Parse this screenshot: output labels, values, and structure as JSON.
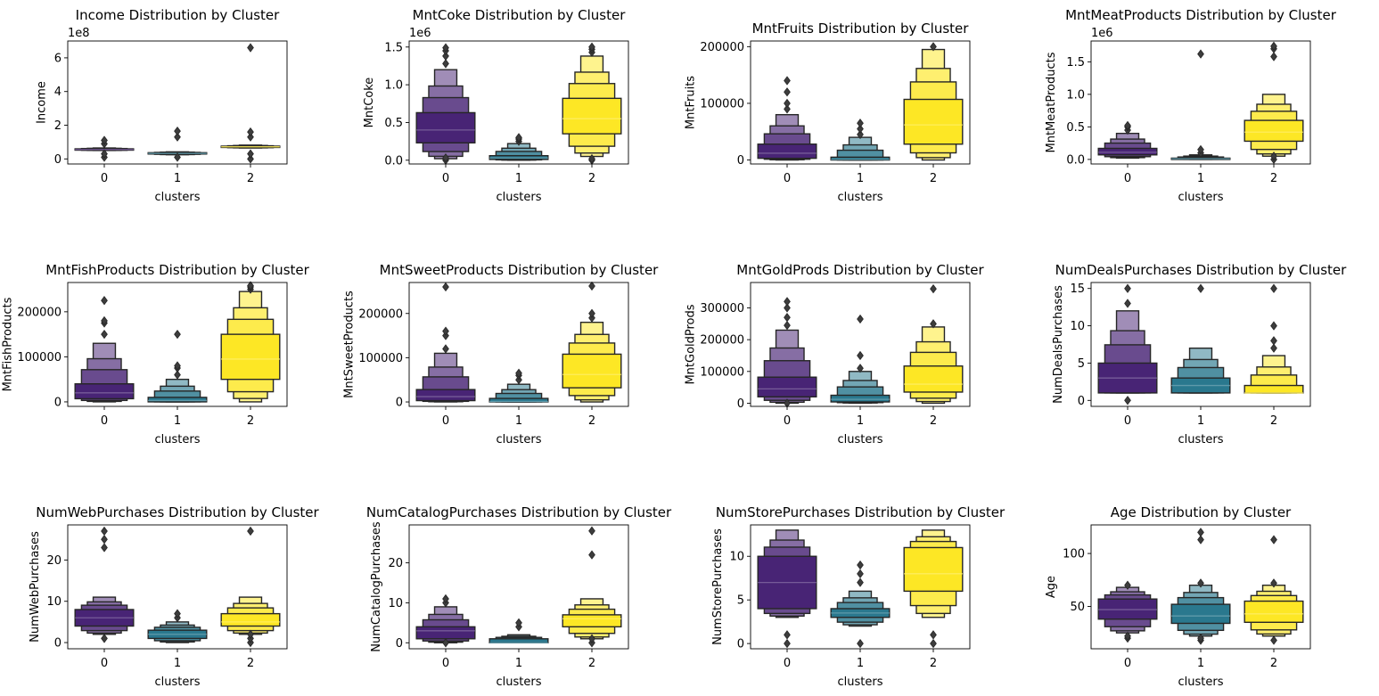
{
  "colors": {
    "cluster_0": "#482475",
    "cluster_1": "#2a788e",
    "cluster_2": "#fde725",
    "edge": "#262626"
  },
  "chart_data": [
    {
      "type": "boxen",
      "title": "Income Distribution by Cluster",
      "xlabel": "clusters",
      "ylabel": "Income",
      "categories": [
        "0",
        "1",
        "2"
      ],
      "ylim": [
        -30000000,
        700000000
      ],
      "yticks": [
        0,
        200000000,
        400000000,
        600000000
      ],
      "ytick_labels": [
        "0",
        "2",
        "4",
        "6"
      ],
      "offset_label": "1e8",
      "boxes": [
        {
          "lo": 50000000,
          "q1": 53000000,
          "med": 56000000,
          "q3": 60000000,
          "hi": 65000000,
          "outliers": [
            10000000,
            30000000,
            90000000,
            110000000
          ]
        },
        {
          "lo": 25000000,
          "q1": 30000000,
          "med": 33000000,
          "q3": 37000000,
          "hi": 42000000,
          "outliers": [
            10000000,
            130000000,
            165000000
          ]
        },
        {
          "lo": 65000000,
          "q1": 69000000,
          "med": 72000000,
          "q3": 76000000,
          "hi": 82000000,
          "outliers": [
            0,
            30000000,
            130000000,
            160000000,
            660000000
          ]
        }
      ]
    },
    {
      "type": "boxen",
      "title": "MntCoke Distribution by Cluster",
      "xlabel": "clusters",
      "ylabel": "MntCoke",
      "categories": [
        "0",
        "1",
        "2"
      ],
      "ylim": [
        -50000,
        1580000
      ],
      "yticks": [
        0,
        500000,
        1000000,
        1500000
      ],
      "ytick_labels": [
        "0.0",
        "0.5",
        "1.0",
        "1.5"
      ],
      "offset_label": "1e6",
      "boxes": [
        {
          "lo": 20000,
          "q1": 230000,
          "med": 400000,
          "q3": 630000,
          "hi": 1200000,
          "outliers": [
            0,
            30000,
            1280000,
            1380000,
            1450000,
            1490000
          ]
        },
        {
          "lo": 0,
          "q1": 10000,
          "med": 30000,
          "q3": 60000,
          "hi": 220000,
          "outliers": [
            250000,
            280000,
            300000
          ]
        },
        {
          "lo": 50000,
          "q1": 350000,
          "med": 550000,
          "q3": 820000,
          "hi": 1380000,
          "outliers": [
            0,
            20000,
            1430000,
            1470000,
            1500000
          ]
        }
      ]
    },
    {
      "type": "boxen",
      "title": "MntFruits Distribution by Cluster",
      "xlabel": "clusters",
      "ylabel": "MntFruits",
      "categories": [
        "0",
        "1",
        "2"
      ],
      "ylim": [
        -7000,
        210000
      ],
      "yticks": [
        0,
        100000,
        200000
      ],
      "ytick_labels": [
        "0",
        "100000",
        "200000"
      ],
      "offset_label": "",
      "boxes": [
        {
          "lo": 0,
          "q1": 3000,
          "med": 12000,
          "q3": 28000,
          "hi": 80000,
          "outliers": [
            90000,
            100000,
            120000,
            140000
          ]
        },
        {
          "lo": 0,
          "q1": 0,
          "med": 1000,
          "q3": 5000,
          "hi": 40000,
          "outliers": [
            45000,
            55000,
            65000
          ]
        },
        {
          "lo": 0,
          "q1": 28000,
          "med": 62000,
          "q3": 107000,
          "hi": 195000,
          "outliers": [
            200000
          ]
        }
      ]
    },
    {
      "type": "boxen",
      "title": "MntMeatProducts Distribution by Cluster",
      "xlabel": "clusters",
      "ylabel": "MntMeatProducts",
      "categories": [
        "0",
        "1",
        "2"
      ],
      "ylim": [
        -70000,
        1820000
      ],
      "yticks": [
        0,
        500000,
        1000000,
        1500000
      ],
      "ytick_labels": [
        "0.0",
        "0.5",
        "1.0",
        "1.5"
      ],
      "offset_label": "1e6",
      "boxes": [
        {
          "lo": 20000,
          "q1": 70000,
          "med": 110000,
          "q3": 170000,
          "hi": 400000,
          "outliers": [
            450000,
            500000,
            520000
          ]
        },
        {
          "lo": 0,
          "q1": 5000,
          "med": 10000,
          "q3": 20000,
          "hi": 70000,
          "outliers": [
            100000,
            150000,
            1620000
          ]
        },
        {
          "lo": 50000,
          "q1": 280000,
          "med": 420000,
          "q3": 600000,
          "hi": 1000000,
          "outliers": [
            0,
            50000,
            1580000,
            1700000,
            1740000
          ]
        }
      ]
    },
    {
      "type": "boxen",
      "title": "MntFishProducts Distribution by Cluster",
      "xlabel": "clusters",
      "ylabel": "MntFishProducts",
      "categories": [
        "0",
        "1",
        "2"
      ],
      "ylim": [
        -10000,
        265000
      ],
      "yticks": [
        0,
        100000,
        200000
      ],
      "ytick_labels": [
        "0",
        "100000",
        "200000"
      ],
      "offset_label": "",
      "boxes": [
        {
          "lo": 0,
          "q1": 7000,
          "med": 20000,
          "q3": 40000,
          "hi": 130000,
          "outliers": [
            150000,
            175000,
            180000,
            225000
          ]
        },
        {
          "lo": 0,
          "q1": 0,
          "med": 3000,
          "q3": 10000,
          "hi": 50000,
          "outliers": [
            60000,
            75000,
            80000,
            150000
          ]
        },
        {
          "lo": 0,
          "q1": 50000,
          "med": 95000,
          "q3": 150000,
          "hi": 245000,
          "outliers": [
            250000,
            255000,
            258000
          ]
        }
      ]
    },
    {
      "type": "boxen",
      "title": "MntSweetProducts Distribution by Cluster",
      "xlabel": "clusters",
      "ylabel": "MntSweetProducts",
      "categories": [
        "0",
        "1",
        "2"
      ],
      "ylim": [
        -10000,
        270000
      ],
      "yticks": [
        0,
        100000,
        200000
      ],
      "ytick_labels": [
        "0",
        "100000",
        "200000"
      ],
      "offset_label": "",
      "boxes": [
        {
          "lo": 0,
          "q1": 3000,
          "med": 12000,
          "q3": 28000,
          "hi": 110000,
          "outliers": [
            120000,
            150000,
            160000,
            260000
          ]
        },
        {
          "lo": 0,
          "q1": 0,
          "med": 1000,
          "q3": 8000,
          "hi": 40000,
          "outliers": [
            50000,
            60000,
            65000
          ]
        },
        {
          "lo": 0,
          "q1": 32000,
          "med": 62000,
          "q3": 108000,
          "hi": 180000,
          "outliers": [
            190000,
            200000,
            262000
          ]
        }
      ]
    },
    {
      "type": "boxen",
      "title": "MntGoldProds Distribution by Cluster",
      "xlabel": "clusters",
      "ylabel": "MntGoldProds",
      "categories": [
        "0",
        "1",
        "2"
      ],
      "ylim": [
        -10000,
        380000
      ],
      "yticks": [
        0,
        100000,
        200000,
        300000
      ],
      "ytick_labels": [
        "0",
        "100000",
        "200000",
        "300000"
      ],
      "offset_label": "",
      "boxes": [
        {
          "lo": 0,
          "q1": 20000,
          "med": 45000,
          "q3": 82000,
          "hi": 230000,
          "outliers": [
            0,
            245000,
            270000,
            300000,
            320000
          ]
        },
        {
          "lo": 0,
          "q1": 4000,
          "med": 12000,
          "q3": 25000,
          "hi": 100000,
          "outliers": [
            110000,
            150000,
            265000
          ]
        },
        {
          "lo": 0,
          "q1": 35000,
          "med": 60000,
          "q3": 117000,
          "hi": 240000,
          "outliers": [
            250000,
            360000
          ]
        }
      ]
    },
    {
      "type": "boxen",
      "title": "NumDealsPurchases Distribution by Cluster",
      "xlabel": "clusters",
      "ylabel": "NumDealsPurchases",
      "categories": [
        "0",
        "1",
        "2"
      ],
      "ylim": [
        -0.8,
        15.8
      ],
      "yticks": [
        0,
        5,
        10,
        15
      ],
      "ytick_labels": [
        "0",
        "5",
        "10",
        "15"
      ],
      "offset_label": "",
      "boxes": [
        {
          "lo": 1,
          "q1": 1,
          "med": 3,
          "q3": 5,
          "hi": 12,
          "outliers": [
            0,
            13,
            15
          ]
        },
        {
          "lo": 1,
          "q1": 1,
          "med": 2,
          "q3": 3,
          "hi": 7,
          "outliers": [
            15
          ]
        },
        {
          "lo": 1,
          "q1": 1,
          "med": 1,
          "q3": 2,
          "hi": 6,
          "outliers": [
            7,
            8,
            10,
            15
          ]
        }
      ]
    },
    {
      "type": "boxen",
      "title": "NumWebPurchases Distribution by Cluster",
      "xlabel": "clusters",
      "ylabel": "NumWebPurchases",
      "categories": [
        "0",
        "1",
        "2"
      ],
      "ylim": [
        -1.5,
        28.5
      ],
      "yticks": [
        0,
        10,
        20
      ],
      "ytick_labels": [
        "0",
        "10",
        "20"
      ],
      "offset_label": "",
      "boxes": [
        {
          "lo": 2,
          "q1": 4,
          "med": 6,
          "q3": 8,
          "hi": 11,
          "outliers": [
            1,
            23,
            25,
            27
          ]
        },
        {
          "lo": 0,
          "q1": 1,
          "med": 2,
          "q3": 3,
          "hi": 5,
          "outliers": [
            6,
            7
          ]
        },
        {
          "lo": 2,
          "q1": 4,
          "med": 5,
          "q3": 7,
          "hi": 11,
          "outliers": [
            0,
            1,
            2,
            27
          ]
        }
      ]
    },
    {
      "type": "boxen",
      "title": "NumCatalogPurchases Distribution by Cluster",
      "xlabel": "clusters",
      "ylabel": "NumCatalogPurchases",
      "categories": [
        "0",
        "1",
        "2"
      ],
      "ylim": [
        -1.5,
        29.5
      ],
      "yticks": [
        0,
        10,
        20
      ],
      "ytick_labels": [
        "0",
        "10",
        "20"
      ],
      "offset_label": "",
      "boxes": [
        {
          "lo": 0,
          "q1": 1,
          "med": 3,
          "q3": 4,
          "hi": 9,
          "outliers": [
            0,
            10,
            11
          ]
        },
        {
          "lo": 0,
          "q1": 0,
          "med": 0,
          "q3": 1,
          "hi": 2,
          "outliers": [
            4,
            5
          ]
        },
        {
          "lo": 1,
          "q1": 4,
          "med": 6,
          "q3": 7,
          "hi": 11,
          "outliers": [
            0,
            1,
            22,
            28
          ]
        }
      ]
    },
    {
      "type": "boxen",
      "title": "NumStorePurchases Distribution by Cluster",
      "xlabel": "clusters",
      "ylabel": "NumStorePurchases",
      "categories": [
        "0",
        "1",
        "2"
      ],
      "ylim": [
        -0.6,
        13.6
      ],
      "yticks": [
        0,
        5,
        10
      ],
      "ytick_labels": [
        "0",
        "5",
        "10"
      ],
      "offset_label": "",
      "boxes": [
        {
          "lo": 3,
          "q1": 4,
          "med": 7,
          "q3": 10,
          "hi": 13,
          "outliers": [
            0,
            1
          ]
        },
        {
          "lo": 2,
          "q1": 3,
          "med": 3.5,
          "q3": 4,
          "hi": 6,
          "outliers": [
            0,
            7,
            8,
            9
          ]
        },
        {
          "lo": 3,
          "q1": 6,
          "med": 8,
          "q3": 11,
          "hi": 13,
          "outliers": [
            0,
            1
          ]
        }
      ]
    },
    {
      "type": "boxen",
      "title": "Age Distribution by Cluster",
      "xlabel": "clusters",
      "ylabel": "Age",
      "categories": [
        "0",
        "1",
        "2"
      ],
      "ylim": [
        10,
        127
      ],
      "yticks": [
        50,
        100
      ],
      "ytick_labels": [
        "50",
        "100"
      ],
      "offset_label": "",
      "boxes": [
        {
          "lo": 25,
          "q1": 38,
          "med": 47,
          "q3": 57,
          "hi": 68,
          "outliers": [
            20,
            22,
            70
          ]
        },
        {
          "lo": 22,
          "q1": 34,
          "med": 41,
          "q3": 52,
          "hi": 70,
          "outliers": [
            18,
            20,
            72,
            113,
            120
          ]
        },
        {
          "lo": 22,
          "q1": 35,
          "med": 43,
          "q3": 55,
          "hi": 70,
          "outliers": [
            18,
            72,
            113
          ]
        }
      ]
    }
  ]
}
